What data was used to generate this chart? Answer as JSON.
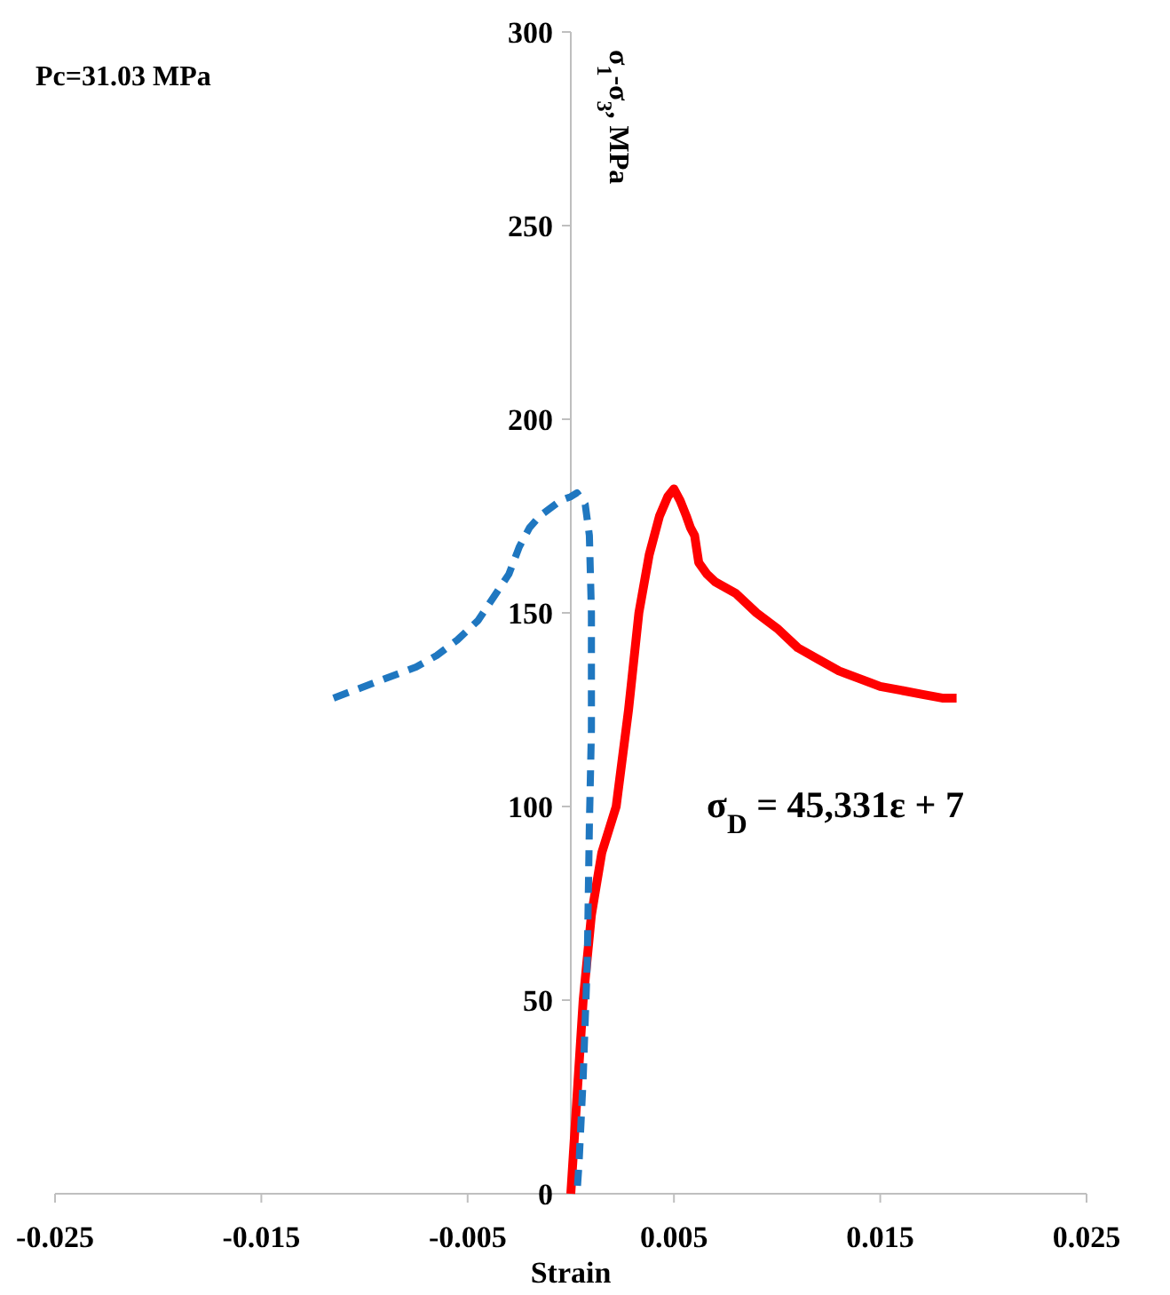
{
  "chart_data": {
    "type": "line",
    "xlabel": "Strain",
    "ylabel": "σ$_{1}$-σ$_{3}$, MPa",
    "xlim": [
      -0.025,
      0.025
    ],
    "xticks": [
      -0.025,
      -0.015,
      -0.005,
      0.005,
      0.015,
      0.025
    ],
    "ylim": [
      0,
      300
    ],
    "yticks": [
      0,
      50,
      100,
      150,
      200,
      250,
      300
    ],
    "grid": false,
    "marker": "none",
    "annotations": [
      "Pc=31.03 MPa",
      "σ$_{D}$ = 45,331ε + 7"
    ],
    "series": [
      {
        "color": "#1f77c0",
        "line_style": "dashed",
        "x": [
          -0.0115,
          -0.0105,
          -0.0095,
          -0.0085,
          -0.0075,
          -0.0065,
          -0.0055,
          -0.0045,
          -0.004,
          -0.0035,
          -0.003,
          -0.0025,
          -0.002,
          -0.0015,
          -0.001,
          -0.0005,
          0,
          0.0003,
          0.0007,
          0.0009,
          0.001,
          0.001,
          0.0009,
          0.0008,
          0.0006,
          0.0004,
          0.0003
        ],
        "values": [
          128,
          130,
          132,
          134,
          136,
          139,
          143,
          148,
          152,
          156,
          160,
          167,
          172,
          175,
          177,
          179,
          180,
          181,
          178,
          170,
          150,
          120,
          95,
          60,
          30,
          8,
          0
        ]
      },
      {
        "color": "#ff0000",
        "line_style": "solid",
        "x": [
          0,
          0.0003,
          0.0006,
          0.001,
          0.0015,
          0.0022,
          0.0028,
          0.0033,
          0.0038,
          0.0043,
          0.0047,
          0.005,
          0.0053,
          0.0056,
          0.0058,
          0.006,
          0.0062,
          0.0066,
          0.007,
          0.008,
          0.009,
          0.01,
          0.011,
          0.012,
          0.013,
          0.014,
          0.015,
          0.016,
          0.017,
          0.018,
          0.0187
        ],
        "values": [
          0,
          25,
          50,
          72,
          88,
          100,
          125,
          150,
          165,
          175,
          180,
          182,
          179,
          175,
          172,
          170,
          163,
          160,
          158,
          155,
          150,
          146,
          141,
          138,
          135,
          133,
          131,
          130,
          129,
          128,
          128
        ]
      }
    ]
  }
}
